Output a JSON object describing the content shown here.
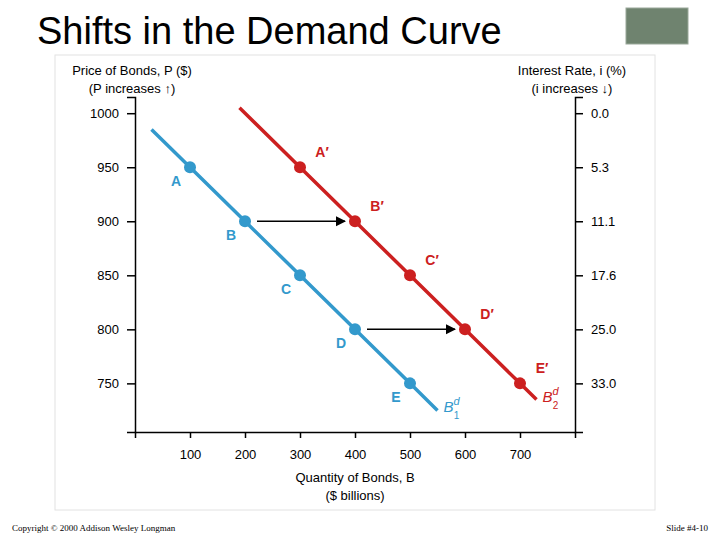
{
  "chart_data": {
    "type": "line",
    "title": "Shifts in the Demand Curve",
    "xlabel": [
      "Quantity of Bonds, B",
      "($ billions)"
    ],
    "ylabel": [
      "Price of Bonds, P ($)",
      "(P increases ↑)"
    ],
    "y2label": [
      "Interest Rate, i (%)",
      "(i increases ↓)"
    ],
    "xlim": [
      0,
      800
    ],
    "xticks": [
      100,
      200,
      300,
      400,
      500,
      600,
      700
    ],
    "ylim": [
      705,
      1015
    ],
    "yticks": [
      750,
      800,
      850,
      900,
      950,
      1000
    ],
    "y2lim": [
      41.8,
      -1.5
    ],
    "y2ticks": [
      {
        "value": 0,
        "label": "0.0"
      },
      {
        "value": 5.3,
        "label": "5.3"
      },
      {
        "value": 11.1,
        "label": "11.1"
      },
      {
        "value": 17.6,
        "label": "17.6"
      },
      {
        "value": 25,
        "label": "25.0"
      },
      {
        "value": 33,
        "label": "33.0"
      }
    ],
    "grid": false,
    "marker": "circle",
    "series": [
      {
        "label": {
          "base": "B",
          "sup": "d",
          "sub": "1"
        },
        "color": "#3399cc",
        "x": [
          30,
          100,
          200,
          300,
          400,
          500,
          550
        ],
        "values": [
          985,
          950,
          900,
          850,
          800,
          750,
          725
        ],
        "point_labels": [
          null,
          "A",
          "B",
          "C",
          "D",
          "E",
          null
        ]
      },
      {
        "label": {
          "base": "B",
          "sup": "d",
          "sub": "2"
        },
        "color": "#cc2020",
        "x": [
          190,
          300,
          400,
          500,
          600,
          700,
          730
        ],
        "values": [
          1005,
          950,
          900,
          850,
          800,
          750,
          735
        ],
        "point_labels": [
          null,
          "A′",
          "B′",
          "C′",
          "D′",
          "E′",
          null
        ]
      }
    ]
  },
  "slide": {
    "copyright": "Copyright © 2000 Addison Wesley Longman",
    "number": "Slide #4-10"
  }
}
